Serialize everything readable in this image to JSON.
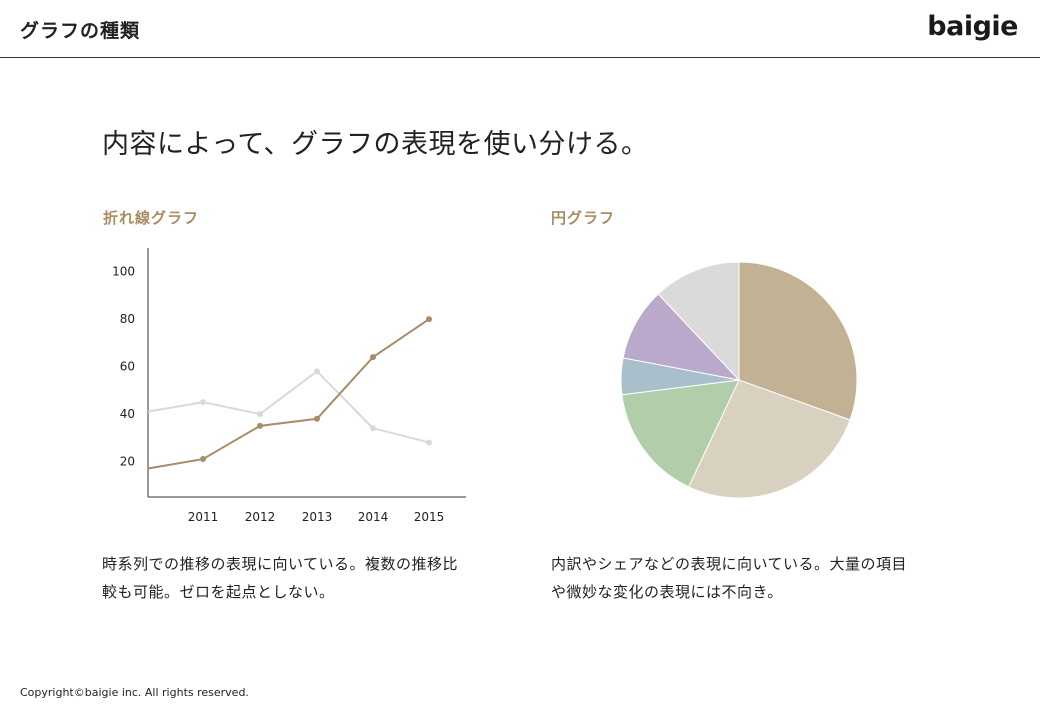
{
  "header": {
    "title": "グラフの種類",
    "logo": "baigie"
  },
  "headline": "内容によって、グラフの表現を使い分ける。",
  "line_section": {
    "label": "折れ線グラフ",
    "description_lines": [
      "時系列での推移の表現に向いている。複数の推移比",
      "較も可能。ゼロを起点としない。"
    ]
  },
  "pie_section": {
    "label": "円グラフ",
    "description_lines": [
      "内訳やシェアなどの表現に向いている。大量の項目",
      "や微妙な変化の表現には不向き。"
    ]
  },
  "footer": {
    "copyright": "Copyright©baigie inc. All rights reserved."
  },
  "colors": {
    "accent": "#a88c62",
    "line_primary": "#a88c6a",
    "line_secondary": "#d9d9d9"
  },
  "chart_data": [
    {
      "type": "line",
      "x": [
        "2011",
        "2012",
        "2013",
        "2014",
        "2015"
      ],
      "yticks": [
        "20",
        "40",
        "60",
        "80",
        "100"
      ],
      "ylim": [
        5,
        110
      ],
      "series": [
        {
          "color": "#a88c6a",
          "start": 17,
          "values": [
            21,
            35,
            38,
            64,
            80
          ]
        },
        {
          "color": "#d9d9d9",
          "start": 41,
          "values": [
            45,
            40,
            58,
            34,
            28
          ]
        }
      ],
      "grid": false
    },
    {
      "type": "pie",
      "slices": [
        {
          "value": 30.5,
          "color": "#c2b293"
        },
        {
          "value": 26.5,
          "color": "#d9d1bf"
        },
        {
          "value": 16,
          "color": "#b2cda9"
        },
        {
          "value": 5,
          "color": "#a9bfcc"
        },
        {
          "value": 10,
          "color": "#bba9cc"
        },
        {
          "value": 12,
          "color": "#dadada"
        }
      ]
    }
  ]
}
